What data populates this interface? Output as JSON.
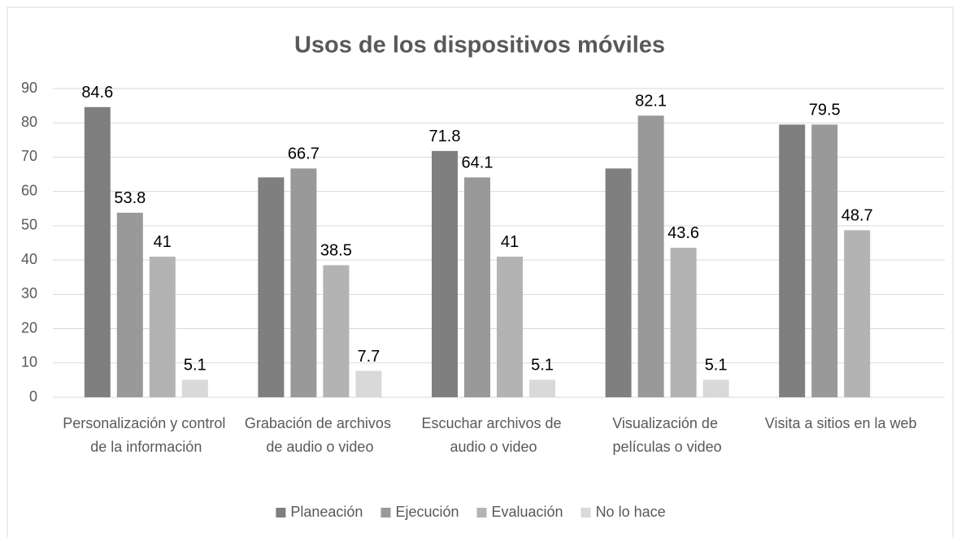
{
  "chart_data": {
    "type": "bar",
    "title": "Usos de los dispositivos móviles",
    "categories": [
      "Personalización y control de la información",
      "Grabación de archivos de audio o video",
      "Escuchar archivos de audio o video",
      "Visualización de películas o video",
      "Visita a sitios en la web"
    ],
    "series": [
      {
        "name": "Planeación",
        "color": "#7f7f7f",
        "values": [
          84.6,
          64.1,
          71.8,
          66.7,
          79.5
        ],
        "value_labels": [
          "84.6",
          null,
          "71.8",
          null,
          null
        ]
      },
      {
        "name": "Ejecución",
        "color": "#999999",
        "values": [
          53.8,
          66.7,
          64.1,
          82.1,
          79.5
        ],
        "value_labels": [
          "53.8",
          "66.7",
          "64.1",
          "82.1",
          "79.5"
        ]
      },
      {
        "name": "Evaluación",
        "color": "#b3b3b3",
        "values": [
          41,
          38.5,
          41,
          43.6,
          48.7
        ],
        "value_labels": [
          "41",
          "38.5",
          "41",
          "43.6",
          "48.7"
        ]
      },
      {
        "name": "No lo hace",
        "color": "#d9d9d9",
        "values": [
          5.1,
          7.7,
          5.1,
          5.1,
          null
        ],
        "value_labels": [
          "5.1",
          "7.7",
          "5.1",
          "5.1",
          null
        ]
      }
    ],
    "ylim": [
      0,
      90
    ],
    "yticks": [
      0,
      10,
      20,
      30,
      40,
      50,
      60,
      70,
      80,
      90
    ],
    "grid": true,
    "legend": "bottom"
  }
}
